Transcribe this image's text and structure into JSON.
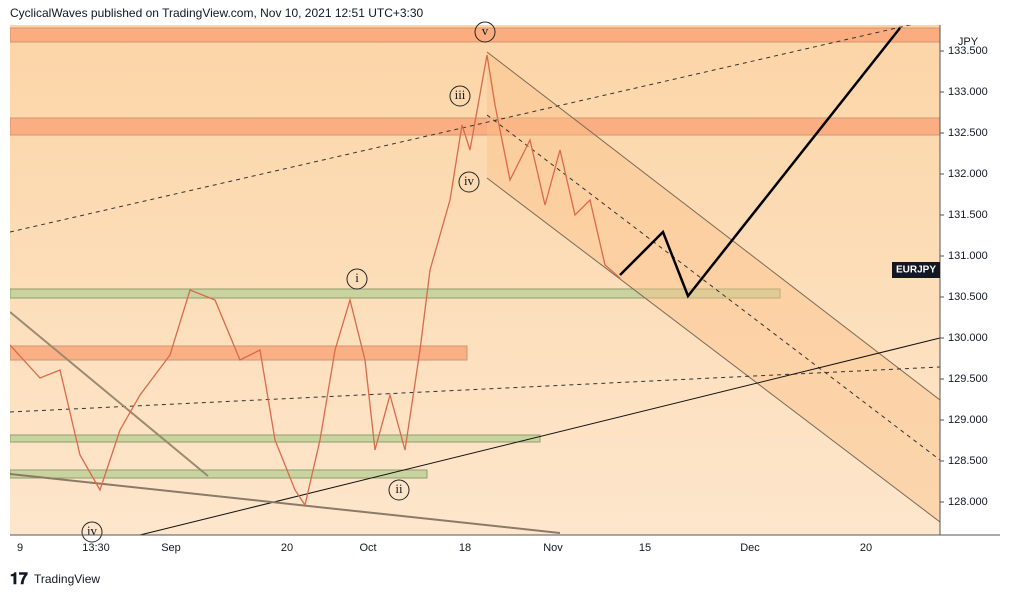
{
  "header": {
    "title": "CyclicalWaves published on TradingView.com, Nov 10, 2021 12:51 UTC+3:30"
  },
  "price_axis": {
    "currency": "JPY",
    "symbol": "EURJPY",
    "ticks": [
      {
        "value": 133.5,
        "label": "133.500"
      },
      {
        "value": 133,
        "label": "133.000"
      },
      {
        "value": 132.5,
        "label": "132.500"
      },
      {
        "value": 132,
        "label": "132.000"
      },
      {
        "value": 131.5,
        "label": "131.500"
      },
      {
        "value": 131,
        "label": "131.000"
      },
      {
        "value": 130.5,
        "label": "130.500"
      },
      {
        "value": 130,
        "label": "130.000"
      },
      {
        "value": 129.5,
        "label": "129.500"
      },
      {
        "value": 129,
        "label": "129.000"
      },
      {
        "value": 128.5,
        "label": "128.500"
      },
      {
        "value": 128,
        "label": "128.000"
      }
    ]
  },
  "time_axis": {
    "labels": [
      "9",
      "13:30",
      "Sep",
      "20",
      "Oct",
      "18",
      "Nov",
      "15",
      "Dec",
      "20"
    ]
  },
  "wave_labels": [
    "v",
    "iii",
    "iv",
    "i",
    "ii",
    "iv"
  ],
  "footer": {
    "brand": "TradingView"
  }
}
